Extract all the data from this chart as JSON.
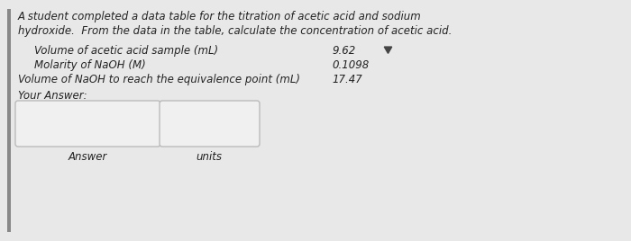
{
  "bg_color": "#e8e8e8",
  "left_bar_color": "#888888",
  "title_line1": "A student completed a data table for the titration of acetic acid and sodium",
  "title_line2": "hydroxide.  From the data in the table, calculate the concentration of acetic acid.",
  "row1_label": "Volume of acetic acid sample (mL)",
  "row1_value": "9.62",
  "row2_label": "Molarity of NaOH (M)",
  "row2_value": "0.1098",
  "row3_label": "Volume of NaOH to reach the equivalence point (mL)",
  "row3_value": "17.47",
  "your_answer_label": "Your Answer:",
  "answer_label": "Answer",
  "units_label": "units",
  "title_fontsize": 8.5,
  "body_fontsize": 8.5,
  "small_fontsize": 8.5
}
